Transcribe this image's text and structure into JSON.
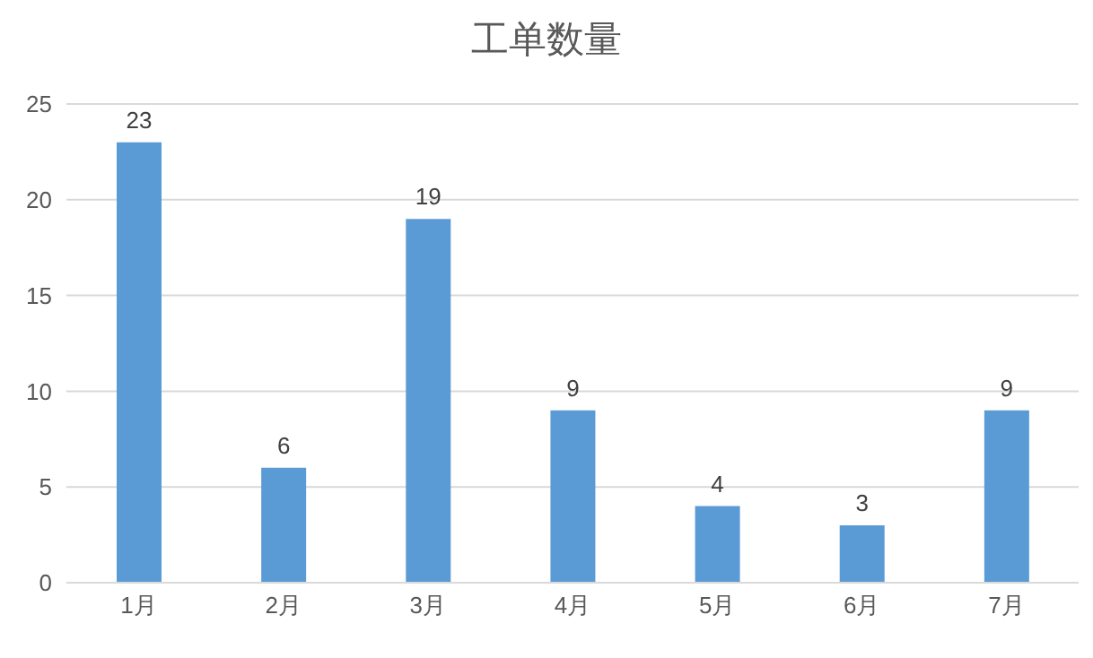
{
  "chart_data": {
    "type": "bar",
    "title": "工单数量",
    "categories": [
      "1月",
      "2月",
      "3月",
      "4月",
      "5月",
      "6月",
      "7月"
    ],
    "values": [
      23,
      6,
      19,
      9,
      4,
      3,
      9
    ],
    "color": "#5b9bd5",
    "ylim": [
      0,
      25
    ],
    "yticks": [
      0,
      5,
      10,
      15,
      20,
      25
    ],
    "grid": "y",
    "data_labels": true
  }
}
